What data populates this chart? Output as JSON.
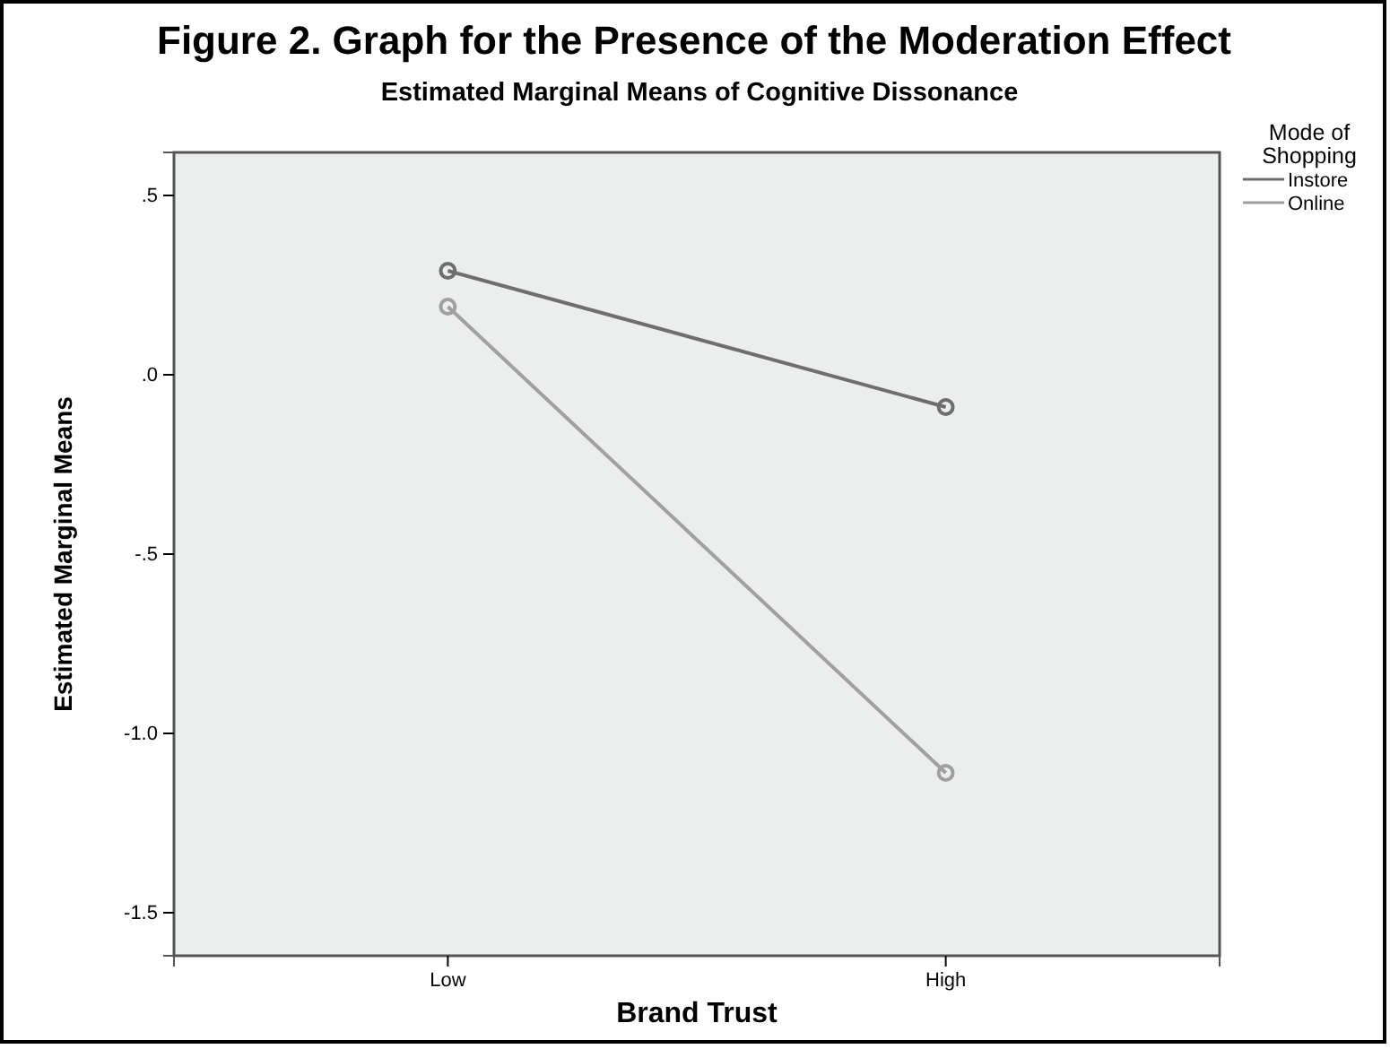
{
  "chart_data": {
    "type": "line",
    "title": "Figure 2. Graph for the Presence of the Moderation Effect",
    "subtitle": "Estimated Marginal Means of Cognitive Dissonance",
    "xlabel": "Brand Trust",
    "ylabel": "Estimated Marginal Means",
    "legend_title": "Mode of Shopping",
    "categories": [
      "Low",
      "High"
    ],
    "series": [
      {
        "name": "Instore",
        "color": "#6e6e6e",
        "values": [
          0.29,
          -0.09
        ]
      },
      {
        "name": "Online",
        "color": "#a0a0a0",
        "values": [
          0.19,
          -1.11
        ]
      }
    ],
    "ylim": [
      -1.62,
      0.62
    ],
    "yticks": [
      {
        "value": 0.5,
        "label": ".5"
      },
      {
        "value": 0,
        "label": ".0"
      },
      {
        "value": -0.5,
        "label": "-.5"
      },
      {
        "value": -1,
        "label": "-1.0"
      },
      {
        "value": -1.5,
        "label": "-1.5"
      }
    ],
    "marker": "circle",
    "legend": "right",
    "grid": false
  }
}
